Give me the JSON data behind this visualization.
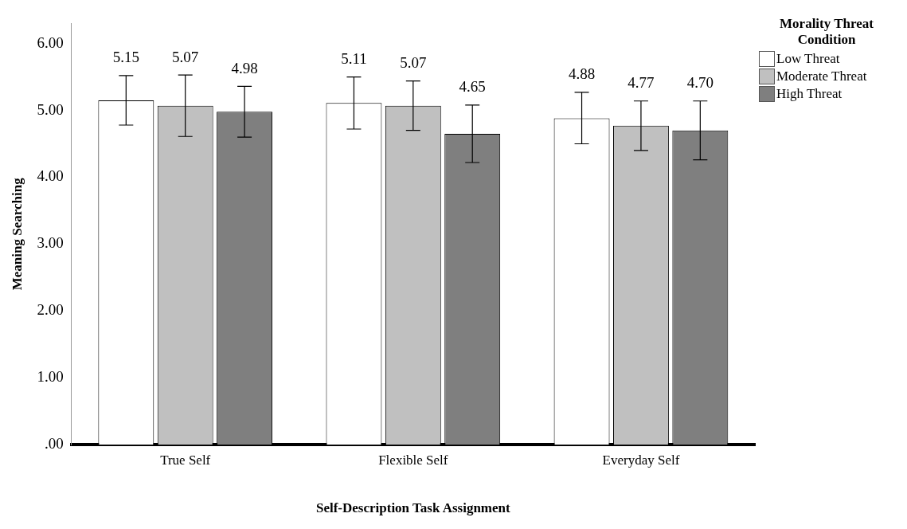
{
  "chart_data": {
    "type": "bar",
    "xlabel": "Self-Description Task Assignment",
    "ylabel": "Meaning Searching",
    "legend_title": "Morality Threat Condition",
    "categories": [
      "True Self",
      "Flexible Self",
      "Everyday Self"
    ],
    "series": [
      {
        "name": "Low Threat",
        "color": "#ffffff",
        "values": [
          5.15,
          5.11,
          4.88
        ],
        "value_labels": [
          "5.15",
          "5.11",
          "4.88"
        ],
        "errors": [
          [
            4.78,
            5.52
          ],
          [
            4.72,
            5.5
          ],
          [
            4.5,
            5.27
          ]
        ]
      },
      {
        "name": "Moderate Threat",
        "color": "#c0c0c0",
        "values": [
          5.07,
          5.07,
          4.77
        ],
        "value_labels": [
          "5.07",
          "5.07",
          "4.77"
        ],
        "errors": [
          [
            4.61,
            5.53
          ],
          [
            4.7,
            5.44
          ],
          [
            4.4,
            5.14
          ]
        ]
      },
      {
        "name": "High Threat",
        "color": "#7f7f7f",
        "values": [
          4.98,
          4.65,
          4.7
        ],
        "value_labels": [
          "4.98",
          "4.65",
          "4.70"
        ],
        "errors": [
          [
            4.6,
            5.36
          ],
          [
            4.22,
            5.08
          ],
          [
            4.26,
            5.14
          ]
        ]
      }
    ],
    "ylim": [
      0,
      6.3
    ],
    "yticks": [
      {
        "value": 0,
        "label": ".00"
      },
      {
        "value": 1,
        "label": "1.00"
      },
      {
        "value": 2,
        "label": "2.00"
      },
      {
        "value": 3,
        "label": "3.00"
      },
      {
        "value": 4,
        "label": "4.00"
      },
      {
        "value": 5,
        "label": "5.00"
      },
      {
        "value": 6,
        "label": "6.00"
      }
    ],
    "legend": "top right",
    "grid": false
  }
}
